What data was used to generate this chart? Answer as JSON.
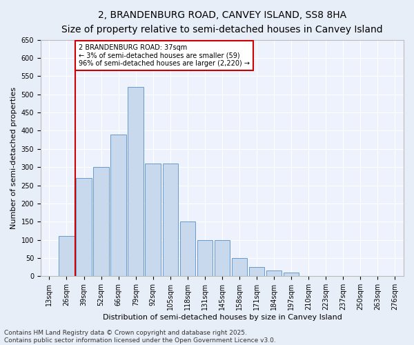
{
  "title": "2, BRANDENBURG ROAD, CANVEY ISLAND, SS8 8HA",
  "subtitle": "Size of property relative to semi-detached houses in Canvey Island",
  "xlabel": "Distribution of semi-detached houses by size in Canvey Island",
  "ylabel": "Number of semi-detached properties",
  "footer_line1": "Contains HM Land Registry data © Crown copyright and database right 2025.",
  "footer_line2": "Contains public sector information licensed under the Open Government Licence v3.0.",
  "categories": [
    "13sqm",
    "26sqm",
    "39sqm",
    "52sqm",
    "66sqm",
    "79sqm",
    "92sqm",
    "105sqm",
    "118sqm",
    "131sqm",
    "145sqm",
    "158sqm",
    "171sqm",
    "184sqm",
    "197sqm",
    "210sqm",
    "223sqm",
    "237sqm",
    "250sqm",
    "263sqm",
    "276sqm"
  ],
  "values": [
    0,
    110,
    270,
    300,
    390,
    520,
    310,
    310,
    150,
    100,
    100,
    50,
    25,
    15,
    10,
    0,
    0,
    0,
    0,
    0,
    0
  ],
  "bar_color": "#c8d9ee",
  "bar_edge_color": "#6699cc",
  "property_line_x": 1.5,
  "annotation_title": "2 BRANDENBURG ROAD: 37sqm",
  "annotation_line1": "← 3% of semi-detached houses are smaller (59)",
  "annotation_line2": "96% of semi-detached houses are larger (2,220) →",
  "annotation_box_color": "#ffffff",
  "annotation_box_edge_color": "#cc0000",
  "vline_color": "#cc0000",
  "ylim": [
    0,
    650
  ],
  "yticks": [
    0,
    50,
    100,
    150,
    200,
    250,
    300,
    350,
    400,
    450,
    500,
    550,
    600,
    650
  ],
  "bg_color": "#e8eef8",
  "plot_bg_color": "#eef2fc",
  "grid_color": "#ffffff",
  "title_fontsize": 10,
  "subtitle_fontsize": 9,
  "tick_fontsize": 7,
  "label_fontsize": 8,
  "footer_fontsize": 6.5
}
